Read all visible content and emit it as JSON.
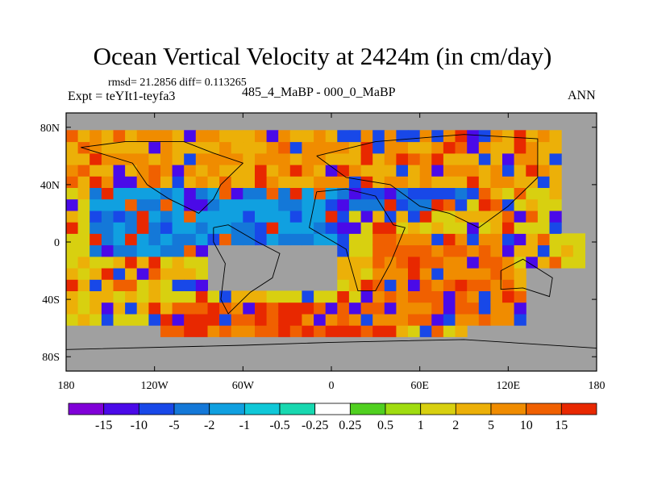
{
  "chart_data": {
    "type": "heatmap",
    "title": "Ocean Vertical Velocity at 2424m (in cm/day)",
    "stats": "rmsd= 21.2856 diff= 0.113265",
    "expt": "Expt = teYIt1-teyfa3",
    "subtitle": "485_4_MaBP - 000_0_MaBP",
    "season": "ANN",
    "xlim": [
      -180,
      180
    ],
    "ylim": [
      -90,
      90
    ],
    "x_ticks": [
      {
        "value": -180,
        "label": "180"
      },
      {
        "value": -120,
        "label": "120W"
      },
      {
        "value": -60,
        "label": "60W"
      },
      {
        "value": 0,
        "label": "0"
      },
      {
        "value": 60,
        "label": "60E"
      },
      {
        "value": 120,
        "label": "120E"
      },
      {
        "value": 180,
        "label": "180"
      }
    ],
    "y_ticks": [
      {
        "value": 80,
        "label": "80N"
      },
      {
        "value": 40,
        "label": "40N"
      },
      {
        "value": 0,
        "label": "0"
      },
      {
        "value": -40,
        "label": "40S"
      },
      {
        "value": -80,
        "label": "80S"
      }
    ],
    "colorbar": {
      "colors": [
        "#8000d8",
        "#4a0ae8",
        "#1848e8",
        "#1478d8",
        "#10a0e0",
        "#10c8d8",
        "#18d8b0",
        "#ffffff",
        "#50d020",
        "#a0dc10",
        "#d8d010",
        "#ecb008",
        "#f08c00",
        "#f06000",
        "#e82800"
      ],
      "labels": [
        "-15",
        "-10",
        "-5",
        "-2",
        "-1",
        "-0.5",
        "-0.25",
        "0.25",
        "0.5",
        "1",
        "2",
        "5",
        "10",
        "15"
      ]
    },
    "land_color": "#a0a0a0",
    "field_regions": [
      {
        "lon": [
          -180,
          155
        ],
        "lat": [
          40,
          80
        ],
        "value": 5
      },
      {
        "lon": [
          -160,
          0
        ],
        "lat": [
          -10,
          40
        ],
        "value": -2
      },
      {
        "lon": [
          0,
          90
        ],
        "lat": [
          20,
          40
        ],
        "value": -5
      },
      {
        "lon": [
          30,
          120
        ],
        "lat": [
          -60,
          5
        ],
        "value": 10
      },
      {
        "lon": [
          -110,
          40
        ],
        "lat": [
          -70,
          -40
        ],
        "value": 15
      }
    ]
  }
}
